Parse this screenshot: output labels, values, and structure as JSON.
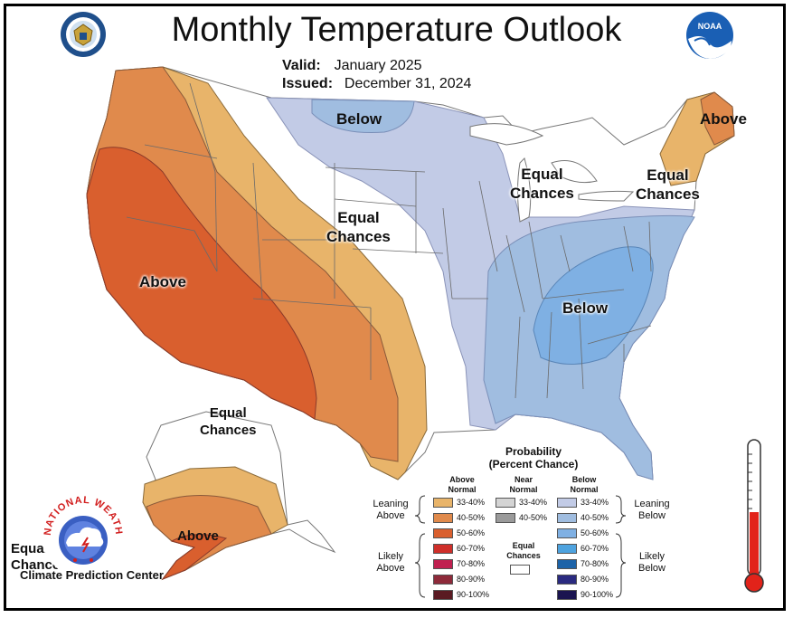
{
  "header": {
    "title": "Monthly Temperature Outlook",
    "valid_label": "Valid:",
    "valid_value": "January 2025",
    "issued_label": "Issued:",
    "issued_value": "December 31, 2024"
  },
  "logos": {
    "doc_seal": "US Department of Commerce seal",
    "noaa": "NOAA",
    "nws_ring_text": "NATIONAL WEATHER SERVICE"
  },
  "map_labels": {
    "below_north": "Below",
    "above_northeast": "Above",
    "equal_great_lakes_1": "Equal",
    "equal_great_lakes_2": "Chances",
    "equal_newengland_1": "Equal",
    "equal_newengland_2": "Chances",
    "equal_plains_1": "Equal",
    "equal_plains_2": "Chances",
    "above_west": "Above",
    "below_southeast": "Below",
    "equal_alaska_1": "Equal",
    "equal_alaska_2": "Chances",
    "above_alaska": "Above",
    "equal_hawaii_1": "Equal",
    "equal_hawaii_2": "Chances"
  },
  "footer": {
    "center_name": "Climate Prediction Center"
  },
  "legend": {
    "title_1": "Probability",
    "title_2": "(Percent Chance)",
    "above_header_1": "Above",
    "above_header_2": "Normal",
    "near_header_1": "Near",
    "near_header_2": "Normal",
    "below_header_1": "Below",
    "below_header_2": "Normal",
    "leaning_above_1": "Leaning",
    "leaning_above_2": "Above",
    "likely_above_1": "Likely",
    "likely_above_2": "Above",
    "leaning_below_1": "Leaning",
    "leaning_below_2": "Below",
    "likely_below_1": "Likely",
    "likely_below_2": "Below",
    "equal_chances_1": "Equal",
    "equal_chances_2": "Chances",
    "above": [
      {
        "label": "33-40%",
        "color": "#e8b46a"
      },
      {
        "label": "40-50%",
        "color": "#e08a4c"
      },
      {
        "label": "50-60%",
        "color": "#d95f2e"
      },
      {
        "label": "60-70%",
        "color": "#cf2f2a"
      },
      {
        "label": "70-80%",
        "color": "#c02050"
      },
      {
        "label": "80-90%",
        "color": "#8e2a3a"
      },
      {
        "label": "90-100%",
        "color": "#5a1a22"
      }
    ],
    "near": [
      {
        "label": "33-40%",
        "color": "#d4d4d4"
      },
      {
        "label": "40-50%",
        "color": "#9a9a9a"
      }
    ],
    "below": [
      {
        "label": "33-40%",
        "color": "#c2cbe6"
      },
      {
        "label": "40-50%",
        "color": "#a0bde0"
      },
      {
        "label": "50-60%",
        "color": "#7fb0e3"
      },
      {
        "label": "60-70%",
        "color": "#4ea3df"
      },
      {
        "label": "70-80%",
        "color": "#1c63a8"
      },
      {
        "label": "80-90%",
        "color": "#2a2a80"
      },
      {
        "label": "90-100%",
        "color": "#1a1450"
      }
    ]
  }
}
